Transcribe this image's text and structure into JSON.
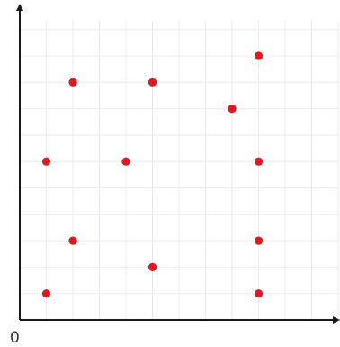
{
  "chart_data": {
    "type": "scatter",
    "title": "",
    "xlabel": "",
    "ylabel": "",
    "origin_label": "0",
    "xlim": [
      0,
      12
    ],
    "ylim": [
      0,
      11
    ],
    "grid": true,
    "axis_arrows": true,
    "point_color": "#e8141c",
    "grid_color": "#ececec",
    "axis_color": "#1a1a1a",
    "points": [
      {
        "x": 1,
        "y": 1
      },
      {
        "x": 2,
        "y": 3
      },
      {
        "x": 5,
        "y": 2
      },
      {
        "x": 9,
        "y": 1
      },
      {
        "x": 9,
        "y": 3
      },
      {
        "x": 1,
        "y": 6
      },
      {
        "x": 4,
        "y": 6
      },
      {
        "x": 9,
        "y": 6
      },
      {
        "x": 2,
        "y": 9
      },
      {
        "x": 5,
        "y": 9
      },
      {
        "x": 8,
        "y": 8
      },
      {
        "x": 9,
        "y": 10
      }
    ]
  }
}
